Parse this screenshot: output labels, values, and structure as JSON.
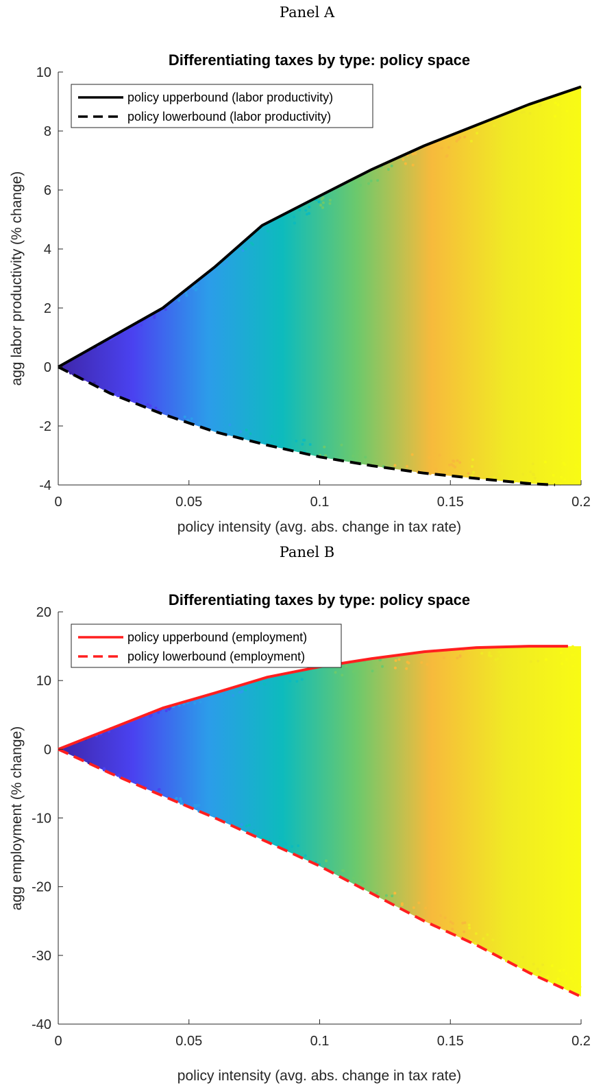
{
  "colors": {
    "panel_a_lines": "#000000",
    "panel_b_lines": "#ff1f1f",
    "axis": "#262626",
    "colormap": [
      "#3e26a8",
      "#4a42f0",
      "#2c9cea",
      "#0dbbbd",
      "#6cc96c",
      "#f7ba3c",
      "#f0ea24",
      "#f9fb14"
    ]
  },
  "panels": [
    {
      "label": "Panel A",
      "chart_data": {
        "type": "scatter",
        "title": "Differentiating taxes by type: policy space",
        "xlabel": "policy intensity (avg. abs. change in tax rate)",
        "ylabel": "agg labor productivity (% change)",
        "xlim": [
          0,
          0.2
        ],
        "ylim": [
          -4,
          10
        ],
        "xticks": [
          0,
          0.05,
          0.1,
          0.15,
          0.2
        ],
        "xtick_labels": [
          "0",
          "0.05",
          "0.1",
          "0.15",
          "0.2"
        ],
        "yticks": [
          -4,
          -2,
          0,
          2,
          4,
          6,
          8,
          10
        ],
        "ytick_labels": [
          "-4",
          "-2",
          "0",
          "2",
          "4",
          "6",
          "8",
          "10"
        ],
        "legend_position": "top-left",
        "colormap": "parula (colored by policy intensity)",
        "series": [
          {
            "name": "policy upperbound (labor productivity)",
            "style": "solid",
            "x": [
              0,
              0.02,
              0.04,
              0.06,
              0.078,
              0.1,
              0.12,
              0.14,
              0.16,
              0.18,
              0.2
            ],
            "y": [
              0,
              1.0,
              2.0,
              3.4,
              4.8,
              5.8,
              6.7,
              7.5,
              8.2,
              8.9,
              9.5
            ]
          },
          {
            "name": "policy lowerbound (labor productivity)",
            "style": "dashed",
            "x": [
              0,
              0.02,
              0.04,
              0.06,
              0.08,
              0.1,
              0.12,
              0.14,
              0.16,
              0.18,
              0.19
            ],
            "y": [
              0,
              -0.9,
              -1.6,
              -2.2,
              -2.65,
              -3.05,
              -3.35,
              -3.6,
              -3.78,
              -3.95,
              -4.0
            ]
          }
        ]
      }
    },
    {
      "label": "Panel B",
      "chart_data": {
        "type": "scatter",
        "title": "Differentiating taxes by type: policy space",
        "xlabel": "policy intensity (avg. abs. change in tax rate)",
        "ylabel": "agg employment (% change)",
        "xlim": [
          0,
          0.2
        ],
        "ylim": [
          -40,
          20
        ],
        "xticks": [
          0,
          0.05,
          0.1,
          0.15,
          0.2
        ],
        "xtick_labels": [
          "0",
          "0.05",
          "0.1",
          "0.15",
          "0.2"
        ],
        "yticks": [
          -40,
          -30,
          -20,
          -10,
          0,
          10,
          20
        ],
        "ytick_labels": [
          "-40",
          "-30",
          "-20",
          "-10",
          "0",
          "10",
          "20"
        ],
        "legend_position": "top-left",
        "colormap": "parula (colored by policy intensity)",
        "series": [
          {
            "name": "policy upperbound (employment)",
            "style": "solid",
            "x": [
              0,
              0.02,
              0.04,
              0.06,
              0.08,
              0.1,
              0.12,
              0.14,
              0.16,
              0.18,
              0.195
            ],
            "y": [
              0,
              3.0,
              6.0,
              8.2,
              10.5,
              12.0,
              13.2,
              14.2,
              14.8,
              15.0,
              15.0
            ]
          },
          {
            "name": "policy lowerbound (employment)",
            "style": "dashed",
            "x": [
              0,
              0.02,
              0.04,
              0.06,
              0.08,
              0.1,
              0.12,
              0.14,
              0.16,
              0.18,
              0.2
            ],
            "y": [
              0,
              -3.5,
              -6.8,
              -10.0,
              -13.5,
              -17.0,
              -21.0,
              -25.0,
              -28.5,
              -32.5,
              -36.0
            ]
          }
        ]
      }
    }
  ]
}
